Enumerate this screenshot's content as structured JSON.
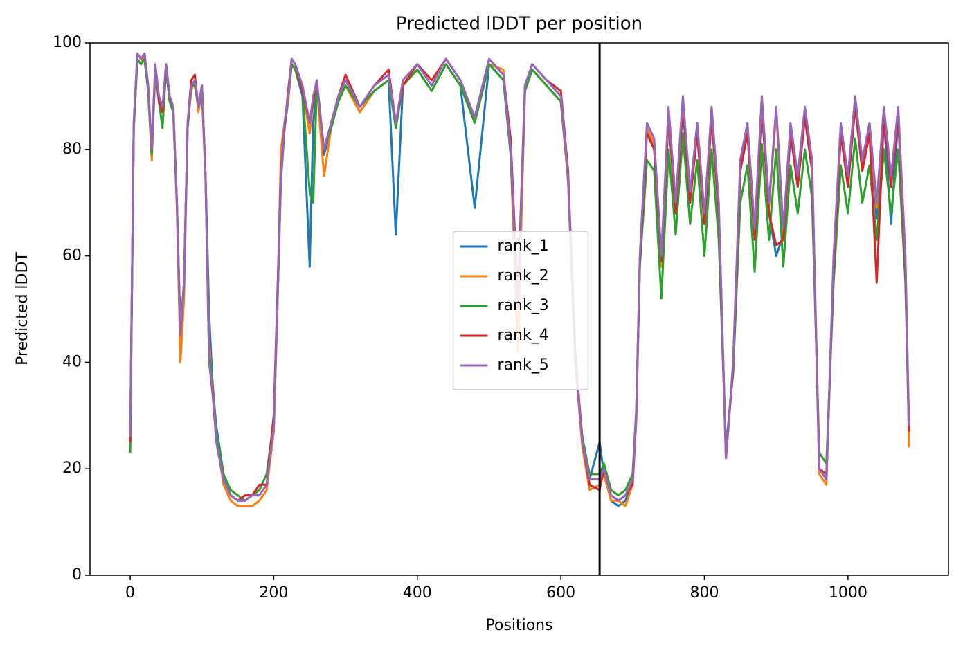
{
  "chart_data": {
    "type": "line",
    "title": "Predicted lDDT per position",
    "xlabel": "Positions",
    "ylabel": "Predicted lDDT",
    "xlim": [
      -56,
      1140
    ],
    "ylim": [
      0,
      100
    ],
    "xticks": [
      0,
      200,
      400,
      600,
      800,
      1000
    ],
    "yticks": [
      0,
      20,
      40,
      60,
      80,
      100
    ],
    "grid": false,
    "legend": "center",
    "vline": 654,
    "vline_color": "#000000",
    "x": [
      0,
      5,
      10,
      15,
      20,
      25,
      30,
      35,
      40,
      45,
      50,
      55,
      60,
      65,
      70,
      75,
      80,
      85,
      90,
      95,
      100,
      105,
      110,
      115,
      120,
      130,
      140,
      150,
      160,
      170,
      180,
      190,
      200,
      205,
      210,
      215,
      220,
      225,
      230,
      240,
      250,
      255,
      260,
      270,
      280,
      290,
      300,
      320,
      340,
      360,
      370,
      380,
      400,
      420,
      440,
      460,
      480,
      500,
      520,
      530,
      540,
      550,
      560,
      580,
      600,
      610,
      620,
      630,
      640,
      654,
      660,
      670,
      680,
      690,
      700,
      705,
      710,
      720,
      730,
      740,
      750,
      760,
      770,
      780,
      790,
      800,
      810,
      820,
      830,
      840,
      850,
      860,
      870,
      880,
      890,
      900,
      910,
      920,
      930,
      940,
      950,
      960,
      970,
      980,
      990,
      1000,
      1010,
      1020,
      1030,
      1040,
      1050,
      1060,
      1070,
      1080,
      1085
    ],
    "series": [
      {
        "name": "rank_1",
        "color": "#1f77b4",
        "values": [
          25,
          84,
          97,
          96,
          97,
          91,
          80,
          95,
          90,
          87,
          95,
          90,
          87,
          70,
          46,
          55,
          84,
          92,
          92,
          88,
          91,
          75,
          49,
          35,
          28,
          19,
          15,
          14,
          14,
          15,
          15,
          17,
          27,
          50,
          74,
          84,
          89,
          96,
          95,
          90,
          58,
          85,
          92,
          79,
          84,
          89,
          92,
          87,
          91,
          93,
          64,
          92,
          95,
          91,
          96,
          92,
          69,
          96,
          93,
          79,
          50,
          91,
          95,
          92,
          89,
          75,
          40,
          25,
          18,
          25,
          19,
          14,
          13,
          14,
          18,
          29,
          59,
          84,
          80,
          60,
          86,
          69,
          88,
          71,
          83,
          66,
          86,
          69,
          23,
          39,
          76,
          83,
          64,
          88,
          68,
          60,
          64,
          83,
          73,
          86,
          76,
          20,
          18,
          58,
          83,
          73,
          88,
          76,
          83,
          67,
          86,
          66,
          86,
          58,
          26
        ]
      },
      {
        "name": "rank_2",
        "color": "#ff7f0e",
        "values": [
          25,
          84,
          97,
          96,
          98,
          91,
          78,
          95,
          89,
          87,
          95,
          89,
          87,
          69,
          40,
          52,
          84,
          91,
          93,
          87,
          91,
          74,
          44,
          34,
          26,
          17,
          14,
          13,
          13,
          13,
          14,
          16,
          27,
          50,
          80,
          85,
          89,
          96,
          95,
          91,
          83,
          89,
          92,
          75,
          84,
          89,
          92,
          87,
          91,
          93,
          84,
          92,
          95,
          91,
          96,
          92,
          85,
          96,
          95,
          79,
          42,
          91,
          95,
          92,
          89,
          74,
          40,
          24,
          16,
          17,
          19,
          14,
          14,
          13,
          17,
          29,
          58,
          84,
          81,
          58,
          87,
          68,
          89,
          71,
          84,
          67,
          86,
          68,
          22,
          39,
          77,
          84,
          64,
          89,
          69,
          87,
          64,
          84,
          74,
          87,
          77,
          19,
          17,
          58,
          84,
          74,
          89,
          77,
          84,
          69,
          87,
          74,
          87,
          59,
          24
        ]
      },
      {
        "name": "rank_3",
        "color": "#2ca02c",
        "values": [
          23,
          84,
          97,
          96,
          97,
          91,
          79,
          95,
          89,
          84,
          95,
          89,
          87,
          70,
          45,
          55,
          84,
          92,
          92,
          88,
          91,
          75,
          42,
          36,
          27,
          19,
          16,
          15,
          14,
          15,
          16,
          19,
          29,
          52,
          75,
          84,
          90,
          96,
          95,
          91,
          72,
          70,
          92,
          80,
          84,
          89,
          92,
          88,
          91,
          93,
          84,
          92,
          95,
          91,
          96,
          92,
          85,
          96,
          93,
          79,
          50,
          91,
          95,
          92,
          89,
          75,
          40,
          26,
          19,
          19,
          21,
          16,
          15,
          16,
          19,
          31,
          58,
          78,
          76,
          52,
          80,
          64,
          83,
          66,
          78,
          60,
          80,
          63,
          24,
          38,
          70,
          77,
          57,
          81,
          63,
          80,
          58,
          77,
          68,
          80,
          71,
          23,
          21,
          55,
          77,
          68,
          82,
          70,
          77,
          63,
          80,
          68,
          80,
          55,
          27
        ]
      },
      {
        "name": "rank_4",
        "color": "#d62728",
        "values": [
          25,
          85,
          98,
          97,
          98,
          92,
          80,
          96,
          89,
          87,
          96,
          90,
          88,
          70,
          45,
          55,
          85,
          93,
          94,
          88,
          92,
          75,
          40,
          34,
          25,
          18,
          15,
          14,
          15,
          15,
          17,
          17,
          30,
          52,
          76,
          84,
          91,
          97,
          96,
          91,
          85,
          89,
          93,
          80,
          85,
          90,
          94,
          88,
          92,
          95,
          85,
          92,
          96,
          93,
          97,
          93,
          86,
          97,
          94,
          82,
          52,
          92,
          96,
          93,
          91,
          76,
          42,
          25,
          17,
          16,
          20,
          15,
          14,
          15,
          17,
          30,
          59,
          83,
          80,
          59,
          86,
          68,
          88,
          70,
          83,
          66,
          86,
          68,
          22,
          39,
          76,
          83,
          63,
          88,
          68,
          62,
          63,
          83,
          73,
          86,
          76,
          20,
          19,
          58,
          83,
          73,
          88,
          76,
          83,
          55,
          86,
          73,
          86,
          58,
          27
        ]
      },
      {
        "name": "rank_5",
        "color": "#9467bd",
        "values": [
          26,
          85,
          98,
          97,
          98,
          92,
          80,
          96,
          90,
          88,
          96,
          90,
          88,
          70,
          45,
          55,
          85,
          92,
          93,
          88,
          92,
          75,
          40,
          35,
          25,
          18,
          15,
          14,
          14,
          15,
          15,
          17,
          28,
          50,
          75,
          85,
          90,
          97,
          96,
          92,
          85,
          90,
          93,
          80,
          85,
          90,
          93,
          88,
          92,
          94,
          85,
          93,
          96,
          92,
          97,
          93,
          86,
          97,
          94,
          80,
          50,
          92,
          96,
          93,
          90,
          75,
          40,
          25,
          18,
          18,
          20,
          15,
          14,
          15,
          18,
          30,
          60,
          85,
          82,
          60,
          88,
          70,
          90,
          72,
          85,
          68,
          88,
          70,
          22,
          40,
          78,
          85,
          65,
          90,
          70,
          88,
          65,
          85,
          75,
          88,
          78,
          20,
          18,
          60,
          85,
          75,
          90,
          78,
          85,
          70,
          88,
          75,
          88,
          60,
          28
        ]
      }
    ]
  }
}
